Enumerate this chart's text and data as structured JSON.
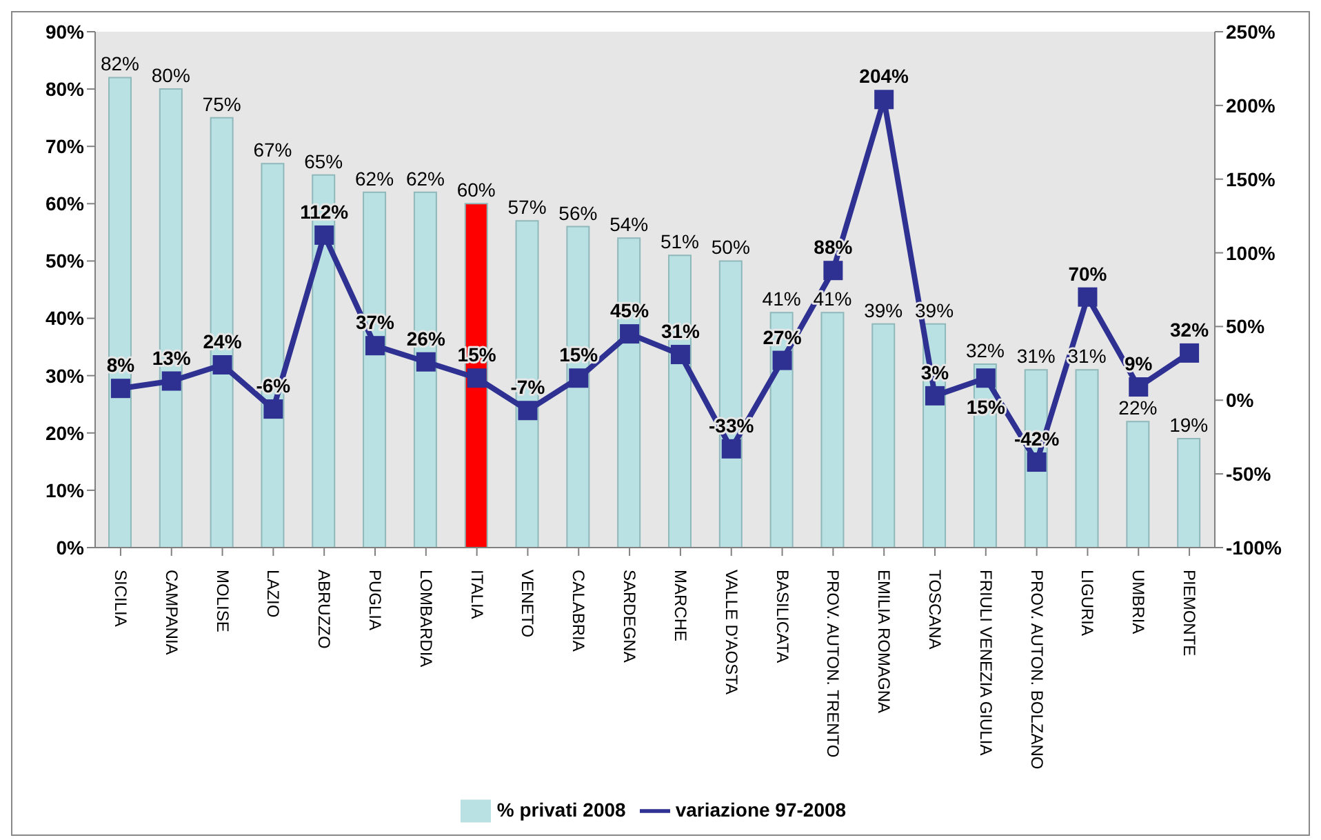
{
  "chart_data": {
    "type": "bar",
    "categories": [
      "SICILIA",
      "CAMPANIA",
      "MOLISE",
      "LAZIO",
      "ABRUZZO",
      "PUGLIA",
      "LOMBARDIA",
      "ITALIA",
      "VENETO",
      "CALABRIA",
      "SARDEGNA",
      "MARCHE",
      "VALLE D'AOSTA",
      "BASILICATA",
      "PROV. AUTON. TRENTO",
      "EMILIA ROMAGNA",
      "TOSCANA",
      "FRIULI VENEZIA GIULIA",
      "PROV. AUTON. BOLZANO",
      "LIGURIA",
      "UMBRIA",
      "PIEMONTE"
    ],
    "series": [
      {
        "name": "% privati 2008",
        "color": "#b9e0e2",
        "colors": [
          "#b9e0e2",
          "#b9e0e2",
          "#b9e0e2",
          "#b9e0e2",
          "#b9e0e2",
          "#b9e0e2",
          "#b9e0e2",
          "#ff0000",
          "#b9e0e2",
          "#b9e0e2",
          "#b9e0e2",
          "#b9e0e2",
          "#b9e0e2",
          "#b9e0e2",
          "#b9e0e2",
          "#b9e0e2",
          "#b9e0e2",
          "#b9e0e2",
          "#b9e0e2",
          "#b9e0e2",
          "#b9e0e2",
          "#b9e0e2"
        ],
        "values": [
          82,
          80,
          75,
          67,
          65,
          62,
          62,
          60,
          57,
          56,
          54,
          51,
          50,
          41,
          41,
          39,
          39,
          32,
          31,
          31,
          22,
          19
        ],
        "value_labels": [
          "82%",
          "80%",
          "75%",
          "67%",
          "65%",
          "62%",
          "62%",
          "60%",
          "57%",
          "56%",
          "54%",
          "51%",
          "50%",
          "41%",
          "41%",
          "39%",
          "39%",
          "32%",
          "31%",
          "31%",
          "22%",
          "19%"
        ]
      },
      {
        "name": "variazione 97-2008",
        "type": "line",
        "axis": "y2",
        "color": "#2e3192",
        "marker": "square",
        "values": [
          8,
          13,
          24,
          -6,
          112,
          37,
          26,
          15,
          -7,
          15,
          45,
          31,
          -33,
          27,
          88,
          204,
          3,
          15,
          -42,
          70,
          9,
          32
        ],
        "value_labels": [
          "8%",
          "13%",
          "24%",
          "-6%",
          "112%",
          "37%",
          "26%",
          "15%",
          "-7%",
          "15%",
          "45%",
          "31%",
          "-33%",
          "27%",
          "88%",
          "204%",
          "3%",
          "15%",
          "-42%",
          "70%",
          "9%",
          "32%"
        ]
      }
    ],
    "ylim": [
      0,
      90
    ],
    "yticks": [
      {
        "value": 0,
        "label": "0%"
      },
      {
        "value": 10,
        "label": "10%"
      },
      {
        "value": 20,
        "label": "20%"
      },
      {
        "value": 30,
        "label": "30%"
      },
      {
        "value": 40,
        "label": "40%"
      },
      {
        "value": 50,
        "label": "50%"
      },
      {
        "value": 60,
        "label": "60%"
      },
      {
        "value": 70,
        "label": "70%"
      },
      {
        "value": 80,
        "label": "80%"
      },
      {
        "value": 90,
        "label": "90%"
      }
    ],
    "y2lim": [
      -100,
      250
    ],
    "y2ticks": [
      {
        "value": -100,
        "label": "-100%"
      },
      {
        "value": -50,
        "label": "-50%"
      },
      {
        "value": 0,
        "label": "0%"
      },
      {
        "value": 50,
        "label": "50%"
      },
      {
        "value": 100,
        "label": "100%"
      },
      {
        "value": 150,
        "label": "150%"
      },
      {
        "value": 200,
        "label": "200%"
      },
      {
        "value": 250,
        "label": "250%"
      }
    ],
    "grid": false,
    "legend": "bottom"
  }
}
